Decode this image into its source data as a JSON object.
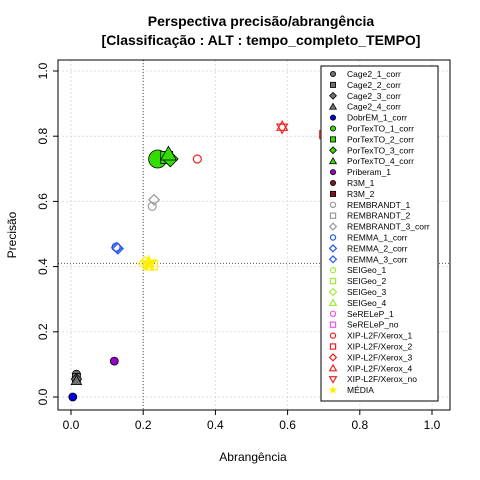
{
  "chart_data": {
    "type": "scatter",
    "title": "Perspectiva precisão/abrangência",
    "subtitle": "[Classificação : ALT : tempo_completo_TEMPO]",
    "xlabel": "Abrangência",
    "ylabel": "Precisão",
    "xlim": [
      0,
      1
    ],
    "ylim": [
      0,
      1
    ],
    "xticks": [
      0,
      0.2,
      0.4,
      0.6,
      0.8,
      1.0
    ],
    "xtick_labels": [
      "0.0",
      "0.2",
      "0.4",
      "0.6",
      "0.8",
      "1.0"
    ],
    "yticks": [
      0,
      0.2,
      0.4,
      0.6,
      0.8,
      1.0
    ],
    "ytick_labels": [
      "0.0",
      "0.2",
      "0.4",
      "0.6",
      "0.8",
      "1.0"
    ],
    "grid": true,
    "legend_position": "right",
    "reference_lines": {
      "x": 0.2,
      "y": 0.41
    },
    "series": [
      {
        "name": "Cage2_1_corr",
        "color": "#707070",
        "shape": "circle",
        "points": [
          [
            0.015,
            0.07
          ]
        ]
      },
      {
        "name": "Cage2_2_corr",
        "color": "#707070",
        "shape": "square",
        "points": [
          [
            0.015,
            0.06
          ]
        ]
      },
      {
        "name": "Cage2_3_corr",
        "color": "#707070",
        "shape": "diamond",
        "points": [
          [
            0.015,
            0.055
          ]
        ]
      },
      {
        "name": "Cage2_4_corr",
        "color": "#707070",
        "shape": "triangle",
        "points": [
          [
            0.015,
            0.05
          ]
        ]
      },
      {
        "name": "DobrEM_1_corr",
        "color": "#0000dd",
        "shape": "circle",
        "points": [
          [
            0.005,
            0.0
          ]
        ]
      },
      {
        "name": "PorTexTO_1_corr",
        "color": "#33dd00",
        "shape": "circle",
        "points": [
          [
            0.24,
            0.73
          ]
        ]
      },
      {
        "name": "PorTexTO_2_corr",
        "color": "#33dd00",
        "shape": "square",
        "points": [
          [
            0.265,
            0.735
          ]
        ]
      },
      {
        "name": "PorTexTO_3_corr",
        "color": "#33dd00",
        "shape": "diamond",
        "points": [
          [
            0.275,
            0.73
          ]
        ]
      },
      {
        "name": "PorTexTO_4_corr",
        "color": "#33dd00",
        "shape": "triangle",
        "points": [
          [
            0.27,
            0.745
          ]
        ]
      },
      {
        "name": "Priberam_1",
        "color": "#9900cc",
        "shape": "circle",
        "points": [
          [
            0.12,
            0.11
          ]
        ]
      },
      {
        "name": "R3M_1",
        "color": "#881122",
        "shape": "circle",
        "points": []
      },
      {
        "name": "R3M_2",
        "color": "#881122",
        "shape": "square",
        "points": []
      },
      {
        "name": "REMBRANDT_1",
        "color": "#999999",
        "shape": "circle",
        "points": [
          [
            0.225,
            0.585
          ]
        ]
      },
      {
        "name": "REMBRANDT_2",
        "color": "#999999",
        "shape": "square",
        "points": []
      },
      {
        "name": "REMBRANDT_3_corr",
        "color": "#999999",
        "shape": "diamond",
        "points": [
          [
            0.23,
            0.605
          ]
        ]
      },
      {
        "name": "REMMA_1_corr",
        "color": "#2255ee",
        "shape": "circle",
        "points": [
          [
            0.125,
            0.46
          ]
        ]
      },
      {
        "name": "REMMA_2_corr",
        "color": "#2255ee",
        "shape": "diamond",
        "points": [
          [
            0.13,
            0.455
          ]
        ]
      },
      {
        "name": "REMMA_3_corr",
        "color": "#2255ee",
        "shape": "diamond",
        "points": [
          [
            0.127,
            0.458
          ]
        ]
      },
      {
        "name": "SEIGeo_1",
        "color": "#99ee33",
        "shape": "circle",
        "points": []
      },
      {
        "name": "SEIGeo_2",
        "color": "#99ee33",
        "shape": "square",
        "points": []
      },
      {
        "name": "SEIGeo_3",
        "color": "#99ee33",
        "shape": "diamond",
        "points": []
      },
      {
        "name": "SEIGeo_4",
        "color": "#99ee33",
        "shape": "triangle",
        "points": []
      },
      {
        "name": "SeRELeP_1",
        "color": "#ee55ee",
        "shape": "circle",
        "points": []
      },
      {
        "name": "SeRELeP_no",
        "color": "#ee55ee",
        "shape": "square",
        "points": []
      },
      {
        "name": "XIP-L2F/Xerox_1",
        "color": "#ee2222",
        "shape": "circle",
        "points": [
          [
            0.35,
            0.73
          ]
        ]
      },
      {
        "name": "XIP-L2F/Xerox_2",
        "color": "#ee2222",
        "shape": "square",
        "points": [
          [
            0.7,
            0.805
          ]
        ]
      },
      {
        "name": "XIP-L2F/Xerox_3",
        "color": "#ee2222",
        "shape": "diamond",
        "points": []
      },
      {
        "name": "XIP-L2F/Xerox_4",
        "color": "#ee2222",
        "shape": "triangle",
        "points": [
          [
            0.585,
            0.83
          ]
        ]
      },
      {
        "name": "XIP-L2F/Xerox_no",
        "color": "#ee2222",
        "shape": "triangle-down",
        "points": [
          [
            0.585,
            0.825
          ]
        ]
      },
      {
        "name": "MÉDIA",
        "color": "#ffee00",
        "shape": "star",
        "points": [
          [
            0.215,
            0.41
          ]
        ]
      }
    ],
    "extra_points": [
      {
        "color": "#ffee00",
        "shape": "square",
        "x": 0.225,
        "y": 0.405
      },
      {
        "color": "#ffee00",
        "shape": "diamond",
        "x": 0.205,
        "y": 0.41
      },
      {
        "color": "#ffee00",
        "shape": "circle",
        "x": 0.215,
        "y": 0.405
      }
    ]
  }
}
